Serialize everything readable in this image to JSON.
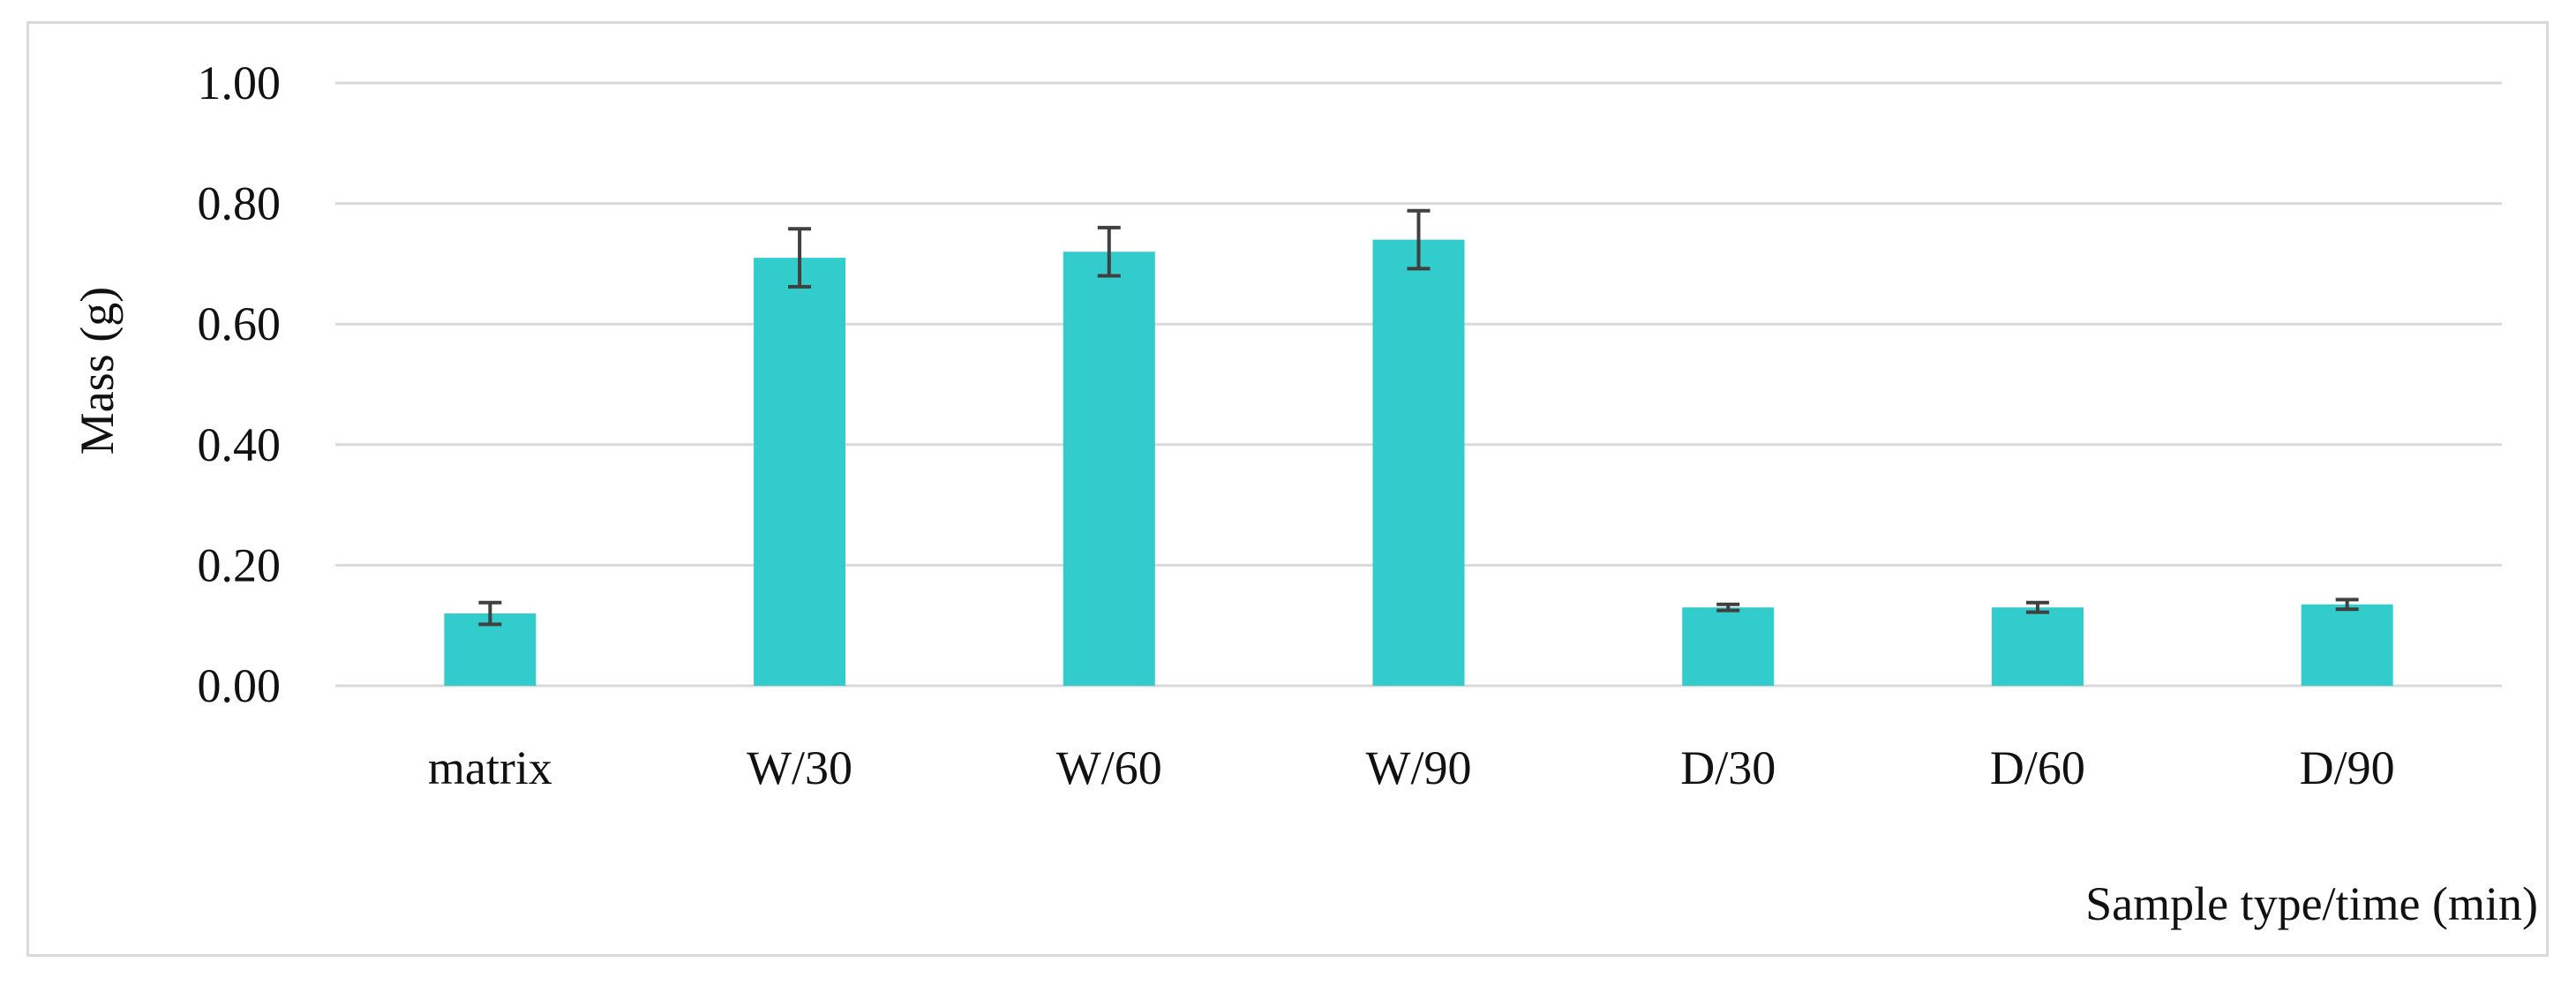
{
  "chart_data": {
    "type": "bar",
    "title": "",
    "xlabel": "Sample type/time (min)",
    "ylabel": "Mass (g)",
    "categories": [
      "matrix",
      "W/30",
      "W/60",
      "W/90",
      "D/30",
      "D/60",
      "D/90"
    ],
    "values": [
      0.12,
      0.71,
      0.72,
      0.74,
      0.13,
      0.13,
      0.135
    ],
    "error": [
      0.018,
      0.048,
      0.04,
      0.048,
      0.005,
      0.008,
      0.008
    ],
    "ylim": [
      0,
      1.0
    ],
    "yticks": [
      "0.00",
      "0.20",
      "0.40",
      "0.60",
      "0.80",
      "1.00"
    ],
    "grid": true,
    "legend": "none",
    "bar_color": "#33cccc",
    "errorbar_color": "#404040",
    "grid_color": "#d9d9d9"
  }
}
